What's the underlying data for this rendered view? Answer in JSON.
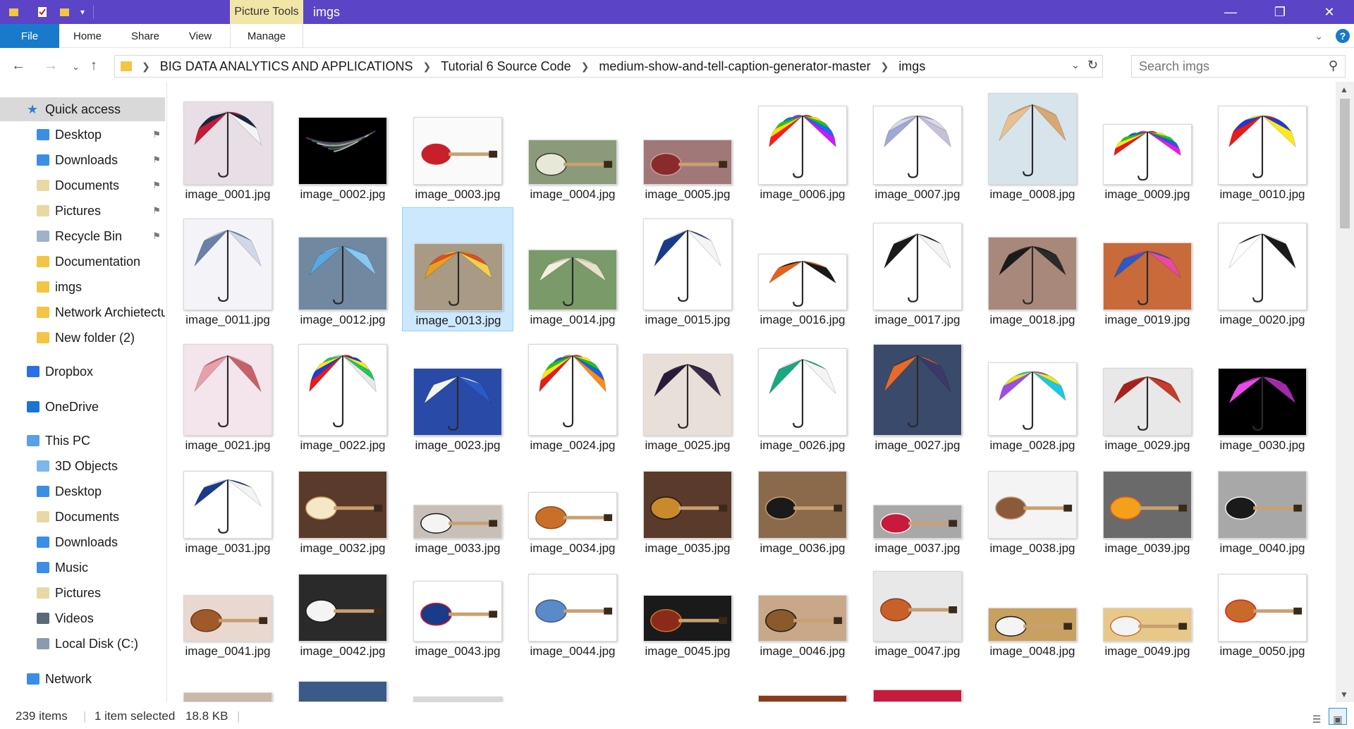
{
  "window": {
    "title": "imgs",
    "context_tab": "Picture Tools",
    "controls": [
      "minimize",
      "maximize",
      "close"
    ]
  },
  "ribbon": {
    "file": "File",
    "tabs": [
      "Home",
      "Share",
      "View",
      "Manage"
    ]
  },
  "address": {
    "segments": [
      "BIG DATA ANALYTICS AND APPLICATIONS",
      "Tutorial 6 Source Code",
      "medium-show-and-tell-caption-generator-master",
      "imgs"
    ]
  },
  "search": {
    "placeholder": "Search imgs"
  },
  "sidebar": [
    {
      "label": "Quick access",
      "icon": "star-icon",
      "color": "#2f7fd6",
      "indent": 0,
      "selected": true
    },
    {
      "label": "Desktop",
      "icon": "folder-icon",
      "color": "#3a8ee6",
      "indent": 1,
      "pinned": true
    },
    {
      "label": "Downloads",
      "icon": "download-folder-icon",
      "color": "#3a8ee6",
      "indent": 1,
      "pinned": true
    },
    {
      "label": "Documents",
      "icon": "documents-folder-icon",
      "color": "#e8d9a4",
      "indent": 1,
      "pinned": true
    },
    {
      "label": "Pictures",
      "icon": "pictures-folder-icon",
      "color": "#e8d9a4",
      "indent": 1,
      "pinned": true
    },
    {
      "label": "Recycle Bin",
      "icon": "recycle-bin-icon",
      "color": "#9fb3c8",
      "indent": 1,
      "pinned": true
    },
    {
      "label": "Documentation",
      "icon": "folder-icon",
      "color": "#f4c544",
      "indent": 1
    },
    {
      "label": "imgs",
      "icon": "folder-icon",
      "color": "#f4c544",
      "indent": 1
    },
    {
      "label": "Network Archietectu",
      "icon": "folder-icon",
      "color": "#f4c544",
      "indent": 1
    },
    {
      "label": "New folder (2)",
      "icon": "folder-icon",
      "color": "#f4c544",
      "indent": 1
    },
    {
      "label": "Dropbox",
      "icon": "dropbox-icon",
      "color": "#2b6fe6",
      "indent": 0
    },
    {
      "label": "OneDrive",
      "icon": "onedrive-icon",
      "color": "#1a73d6",
      "indent": 0
    },
    {
      "label": "This PC",
      "icon": "computer-icon",
      "color": "#5aa0e8",
      "indent": 0
    },
    {
      "label": "3D Objects",
      "icon": "3d-objects-icon",
      "color": "#7cb8ea",
      "indent": 1
    },
    {
      "label": "Desktop",
      "icon": "folder-icon",
      "color": "#3a8ee6",
      "indent": 1
    },
    {
      "label": "Documents",
      "icon": "documents-folder-icon",
      "color": "#e8d9a4",
      "indent": 1
    },
    {
      "label": "Downloads",
      "icon": "download-folder-icon",
      "color": "#3a8ee6",
      "indent": 1
    },
    {
      "label": "Music",
      "icon": "music-folder-icon",
      "color": "#3a8ee6",
      "indent": 1
    },
    {
      "label": "Pictures",
      "icon": "pictures-folder-icon",
      "color": "#e8d9a4",
      "indent": 1
    },
    {
      "label": "Videos",
      "icon": "videos-folder-icon",
      "color": "#5a6a7a",
      "indent": 1
    },
    {
      "label": "Local Disk (C:)",
      "icon": "disk-icon",
      "color": "#8a9bb0",
      "indent": 1
    },
    {
      "label": "Network",
      "icon": "network-icon",
      "color": "#3a8ee6",
      "indent": 0
    }
  ],
  "files": [
    {
      "name": "image_0001.jpg",
      "kind": "umbrella",
      "colors": [
        "#c41a3a",
        "#1a2440",
        "#f4f4f4"
      ],
      "bg": "#e8dfe6"
    },
    {
      "name": "image_0002.jpg",
      "kind": "dark",
      "colors": [
        "#5a2f7a",
        "#3a7a2f",
        "#b0b0b0"
      ],
      "bg": "#000000"
    },
    {
      "name": "image_0003.jpg",
      "kind": "guitar",
      "colors": [
        "#c8202a",
        "#f4f0e8"
      ],
      "bg": "#fafafa"
    },
    {
      "name": "image_0004.jpg",
      "kind": "guitar",
      "colors": [
        "#e8e8d8",
        "#3a3a2a"
      ],
      "bg": "#8a9a7a"
    },
    {
      "name": "image_0005.jpg",
      "kind": "guitar",
      "colors": [
        "#8a2a2a",
        "#c8a0a0"
      ],
      "bg": "#a07878"
    },
    {
      "name": "image_0006.jpg",
      "kind": "umbrella",
      "colors": [
        "#ff1a1a",
        "#ffdd00",
        "#1ac81a",
        "#1a6aff",
        "#c81aff"
      ],
      "bg": "#ffffff"
    },
    {
      "name": "image_0007.jpg",
      "kind": "umbrella",
      "colors": [
        "#a0a8d8",
        "#d8d8e8",
        "#c8c0d8"
      ],
      "bg": "#ffffff"
    },
    {
      "name": "image_0008.jpg",
      "kind": "umbrella",
      "colors": [
        "#e8c090",
        "#d8a870"
      ],
      "bg": "#d8e4ec"
    },
    {
      "name": "image_0009.jpg",
      "kind": "umbrella",
      "colors": [
        "#e81a1a",
        "#ffe81a",
        "#1ac81a",
        "#1a60e8",
        "#e81ae8"
      ],
      "bg": "#ffffff"
    },
    {
      "name": "image_0010.jpg",
      "kind": "umbrella",
      "colors": [
        "#e81a1a",
        "#1a3ae8",
        "#ffe81a"
      ],
      "bg": "#ffffff"
    },
    {
      "name": "image_0011.jpg",
      "kind": "umbrella",
      "colors": [
        "#6a80a8",
        "#d0d8e8"
      ],
      "bg": "#f4f4f8"
    },
    {
      "name": "image_0012.jpg",
      "kind": "umbrella",
      "colors": [
        "#5aa8e0",
        "#8ac8f0"
      ],
      "bg": "#7088a0"
    },
    {
      "name": "image_0013.jpg",
      "kind": "umbrella",
      "colors": [
        "#e8a020",
        "#e84a20",
        "#f4d050"
      ],
      "bg": "#a89a84",
      "selected": true
    },
    {
      "name": "image_0014.jpg",
      "kind": "umbrella",
      "colors": [
        "#f4f0e0",
        "#e8e0c8"
      ],
      "bg": "#7a9a6a"
    },
    {
      "name": "image_0015.jpg",
      "kind": "umbrella",
      "colors": [
        "#1a3a8a",
        "#f4f4f4"
      ],
      "bg": "#ffffff"
    },
    {
      "name": "image_0016.jpg",
      "kind": "umbrella",
      "colors": [
        "#e8601a",
        "#1a1a1a"
      ],
      "bg": "#ffffff"
    },
    {
      "name": "image_0017.jpg",
      "kind": "umbrella",
      "colors": [
        "#1a1a1a",
        "#f4f4f4"
      ],
      "bg": "#ffffff"
    },
    {
      "name": "image_0018.jpg",
      "kind": "umbrella",
      "colors": [
        "#1a1a1a",
        "#2a2a2a"
      ],
      "bg": "#a8887a"
    },
    {
      "name": "image_0019.jpg",
      "kind": "umbrella",
      "colors": [
        "#2a5ac8",
        "#e84aa0"
      ],
      "bg": "#c86a3a"
    },
    {
      "name": "image_0020.jpg",
      "kind": "umbrella",
      "colors": [
        "#ffffff",
        "#1a1a1a"
      ],
      "bg": "#ffffff"
    },
    {
      "name": "image_0021.jpg",
      "kind": "umbrella",
      "colors": [
        "#e8a0a8",
        "#c8606a"
      ],
      "bg": "#f4e4ec"
    },
    {
      "name": "image_0022.jpg",
      "kind": "umbrella",
      "colors": [
        "#e81a1a",
        "#1a3ae8",
        "#ffe81a",
        "#1ac860",
        "#e8e8e8"
      ],
      "bg": "#ffffff"
    },
    {
      "name": "image_0023.jpg",
      "kind": "umbrella",
      "colors": [
        "#f4f4f0",
        "#2a5ac8"
      ],
      "bg": "#2a4aa8"
    },
    {
      "name": "image_0024.jpg",
      "kind": "umbrella",
      "colors": [
        "#e81a1a",
        "#ffe81a",
        "#1ac81a",
        "#1a60e8",
        "#ff8a1a"
      ],
      "bg": "#ffffff"
    },
    {
      "name": "image_0025.jpg",
      "kind": "umbrella",
      "colors": [
        "#2a1a3a",
        "#3a2a4a"
      ],
      "bg": "#e8e0d8"
    },
    {
      "name": "image_0026.jpg",
      "kind": "umbrella",
      "colors": [
        "#1aa880",
        "#f4f4f4"
      ],
      "bg": "#ffffff"
    },
    {
      "name": "image_0027.jpg",
      "kind": "umbrella",
      "colors": [
        "#e86a2a",
        "#3a3a6a"
      ],
      "bg": "#3a4a6a"
    },
    {
      "name": "image_0028.jpg",
      "kind": "umbrella",
      "colors": [
        "#a04ae8",
        "#e8e81a",
        "#1ac8e8"
      ],
      "bg": "#ffffff"
    },
    {
      "name": "image_0029.jpg",
      "kind": "umbrella",
      "colors": [
        "#a8201a",
        "#c83a2a"
      ],
      "bg": "#e8e8e8"
    },
    {
      "name": "image_0030.jpg",
      "kind": "umbrella",
      "colors": [
        "#e84ae8",
        "#a02aa8"
      ],
      "bg": "#000000"
    },
    {
      "name": "image_0031.jpg",
      "kind": "umbrella",
      "colors": [
        "#1a3a8a",
        "#f4f4f4"
      ],
      "bg": "#ffffff"
    },
    {
      "name": "image_0032.jpg",
      "kind": "guitar",
      "colors": [
        "#f4e8c8",
        "#c8a060"
      ],
      "bg": "#5a3a2a"
    },
    {
      "name": "image_0033.jpg",
      "kind": "guitar",
      "colors": [
        "#f4f4f4",
        "#1a1a1a"
      ],
      "bg": "#c8c0b8"
    },
    {
      "name": "image_0034.jpg",
      "kind": "guitar",
      "colors": [
        "#c8702a",
        "#8a4a1a"
      ],
      "bg": "#ffffff"
    },
    {
      "name": "image_0035.jpg",
      "kind": "guitar",
      "colors": [
        "#c88a2a",
        "#1a1a1a"
      ],
      "bg": "#5a3a2a"
    },
    {
      "name": "image_0036.jpg",
      "kind": "guitar",
      "colors": [
        "#1a1a1a",
        "#c8a070"
      ],
      "bg": "#8a6a4a"
    },
    {
      "name": "image_0037.jpg",
      "kind": "guitar",
      "colors": [
        "#c81a3a",
        "#f4f4f4"
      ],
      "bg": "#a8a8a8"
    },
    {
      "name": "image_0038.jpg",
      "kind": "guitar",
      "colors": [
        "#8a5a3a",
        "#c8a080"
      ],
      "bg": "#f4f4f4"
    },
    {
      "name": "image_0039.jpg",
      "kind": "guitar",
      "colors": [
        "#f4a01a",
        "#e8601a"
      ],
      "bg": "#6a6a6a"
    },
    {
      "name": "image_0040.jpg",
      "kind": "guitar",
      "colors": [
        "#1a1a1a",
        "#f4f4f4"
      ],
      "bg": "#a8a8a8"
    },
    {
      "name": "image_0041.jpg",
      "kind": "guitar",
      "colors": [
        "#a05a2a",
        "#6a3a1a"
      ],
      "bg": "#e8d8d0"
    },
    {
      "name": "image_0042.jpg",
      "kind": "guitar",
      "colors": [
        "#f4f4f4",
        "#1a1a1a"
      ],
      "bg": "#2a2a2a"
    },
    {
      "name": "image_0043.jpg",
      "kind": "guitar",
      "colors": [
        "#1a3a8a",
        "#e81a1a",
        "#f4f4f4"
      ],
      "bg": "#ffffff"
    },
    {
      "name": "image_0044.jpg",
      "kind": "guitar",
      "colors": [
        "#5a8ac8",
        "#3a5a8a"
      ],
      "bg": "#ffffff"
    },
    {
      "name": "image_0045.jpg",
      "kind": "guitar",
      "colors": [
        "#8a2a1a",
        "#c87a2a"
      ],
      "bg": "#1a1a1a"
    },
    {
      "name": "image_0046.jpg",
      "kind": "guitar",
      "colors": [
        "#8a5a2a",
        "#1a1a1a"
      ],
      "bg": "#c8a888"
    },
    {
      "name": "image_0047.jpg",
      "kind": "guitar",
      "colors": [
        "#c8602a",
        "#8a3a1a"
      ],
      "bg": "#e8e8e8"
    },
    {
      "name": "image_0048.jpg",
      "kind": "guitar",
      "colors": [
        "#f4f4f4",
        "#1a1a1a"
      ],
      "bg": "#c8a060"
    },
    {
      "name": "image_0049.jpg",
      "kind": "guitar",
      "colors": [
        "#f4f4f4",
        "#c86a2a"
      ],
      "bg": "#e8c888"
    },
    {
      "name": "image_0050.jpg",
      "kind": "guitar",
      "colors": [
        "#c86a2a",
        "#e81a1a"
      ],
      "bg": "#ffffff"
    }
  ],
  "status": {
    "count": "239 items",
    "selection": "1 item selected",
    "size": "18.8 KB"
  }
}
